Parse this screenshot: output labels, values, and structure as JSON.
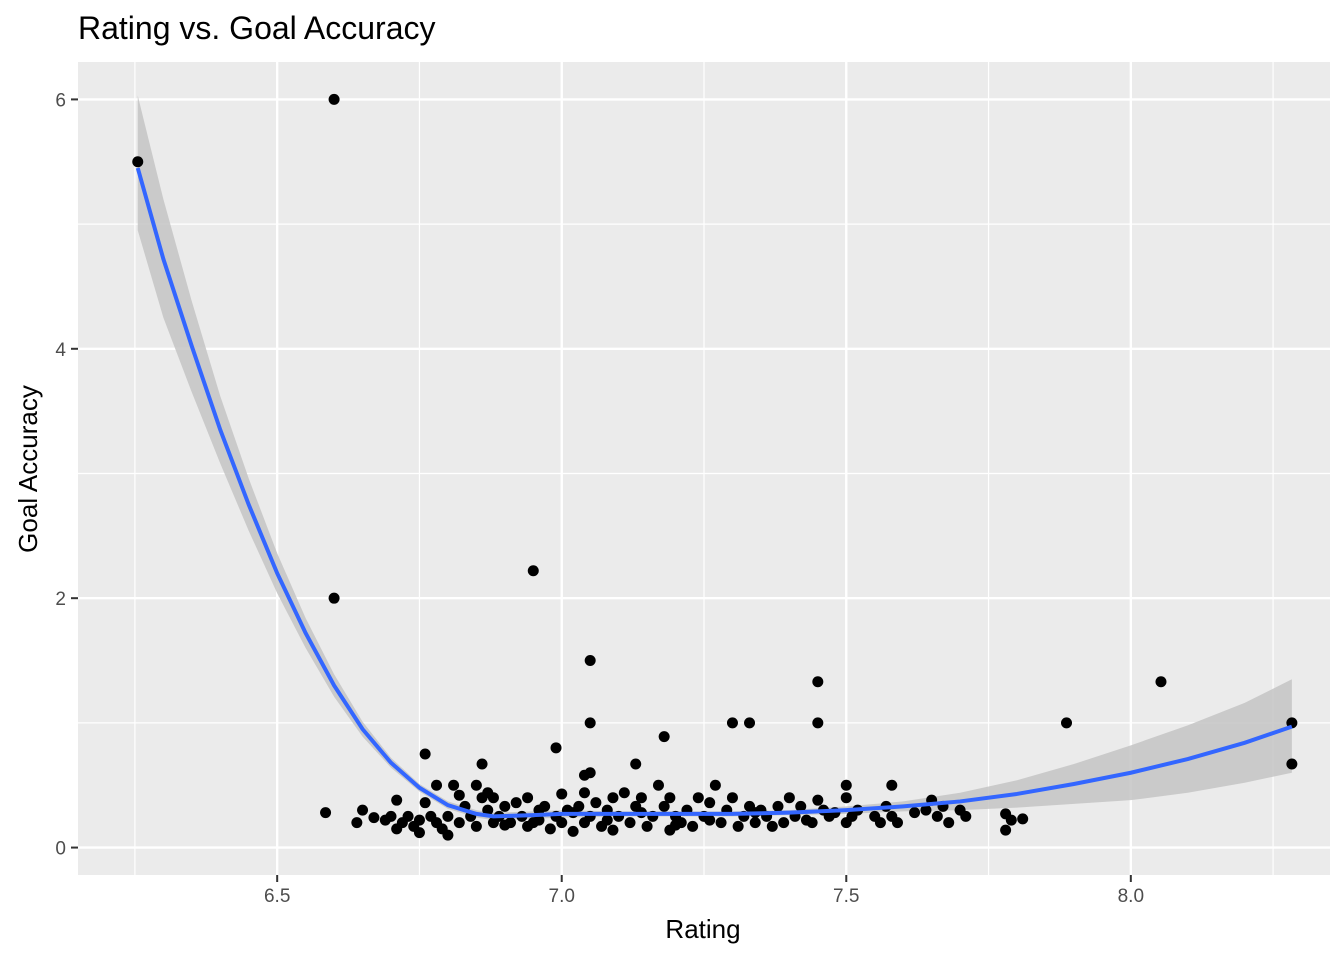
{
  "chart_data": {
    "type": "scatter",
    "title": "Rating vs. Goal Accuracy",
    "xlabel": "Rating",
    "ylabel": "Goal Accuracy",
    "xlim": [
      6.15,
      8.35
    ],
    "ylim": [
      -0.22,
      6.3
    ],
    "xticks": [
      6.5,
      7.0,
      7.5,
      8.0
    ],
    "xtick_labels": [
      "6.5",
      "7.0",
      "7.5",
      "8.0"
    ],
    "yticks": [
      0,
      2,
      4,
      6
    ],
    "ytick_labels": [
      "0",
      "2",
      "4",
      "6"
    ],
    "grid": true,
    "colors": {
      "panel": "#ebebeb",
      "grid": "#ffffff",
      "points": "#000000",
      "smooth": "#3366ff",
      "ribbon": "#c4c4c4"
    },
    "points": [
      [
        6.255,
        5.5
      ],
      [
        6.6,
        6.0
      ],
      [
        6.6,
        2.0
      ],
      [
        6.95,
        2.22
      ],
      [
        7.05,
        1.5
      ],
      [
        7.05,
        1.0
      ],
      [
        7.45,
        1.33
      ],
      [
        7.45,
        1.0
      ],
      [
        8.053,
        1.33
      ],
      [
        7.887,
        1.0
      ],
      [
        8.283,
        1.0
      ],
      [
        8.283,
        0.67
      ],
      [
        7.3,
        1.0
      ],
      [
        7.33,
        1.0
      ],
      [
        6.99,
        0.8
      ],
      [
        7.18,
        0.89
      ],
      [
        6.76,
        0.75
      ],
      [
        7.13,
        0.67
      ],
      [
        6.86,
        0.67
      ],
      [
        6.585,
        0.28
      ],
      [
        7.05,
        0.6
      ],
      [
        7.04,
        0.58
      ],
      [
        6.64,
        0.2
      ],
      [
        6.65,
        0.3
      ],
      [
        6.67,
        0.24
      ],
      [
        6.69,
        0.22
      ],
      [
        6.7,
        0.25
      ],
      [
        6.71,
        0.15
      ],
      [
        6.71,
        0.38
      ],
      [
        6.72,
        0.2
      ],
      [
        6.73,
        0.25
      ],
      [
        6.74,
        0.17
      ],
      [
        6.75,
        0.12
      ],
      [
        6.75,
        0.22
      ],
      [
        6.76,
        0.36
      ],
      [
        6.77,
        0.25
      ],
      [
        6.78,
        0.5
      ],
      [
        6.78,
        0.2
      ],
      [
        6.79,
        0.15
      ],
      [
        6.8,
        0.1
      ],
      [
        6.8,
        0.25
      ],
      [
        6.81,
        0.5
      ],
      [
        6.82,
        0.42
      ],
      [
        6.82,
        0.2
      ],
      [
        6.83,
        0.33
      ],
      [
        6.84,
        0.25
      ],
      [
        6.85,
        0.5
      ],
      [
        6.85,
        0.17
      ],
      [
        6.86,
        0.4
      ],
      [
        6.87,
        0.44
      ],
      [
        6.87,
        0.3
      ],
      [
        6.88,
        0.2
      ],
      [
        6.88,
        0.4
      ],
      [
        6.89,
        0.25
      ],
      [
        6.9,
        0.33
      ],
      [
        6.91,
        0.2
      ],
      [
        6.92,
        0.36
      ],
      [
        6.93,
        0.25
      ],
      [
        6.94,
        0.4
      ],
      [
        6.94,
        0.17
      ],
      [
        6.95,
        0.2
      ],
      [
        6.96,
        0.3
      ],
      [
        6.97,
        0.33
      ],
      [
        6.98,
        0.15
      ],
      [
        6.99,
        0.25
      ],
      [
        7.0,
        0.43
      ],
      [
        7.0,
        0.2
      ],
      [
        7.01,
        0.3
      ],
      [
        7.02,
        0.13
      ],
      [
        7.03,
        0.33
      ],
      [
        7.04,
        0.44
      ],
      [
        7.04,
        0.2
      ],
      [
        7.05,
        0.25
      ],
      [
        7.06,
        0.36
      ],
      [
        7.07,
        0.17
      ],
      [
        7.08,
        0.3
      ],
      [
        7.09,
        0.14
      ],
      [
        7.09,
        0.4
      ],
      [
        7.1,
        0.25
      ],
      [
        7.11,
        0.44
      ],
      [
        7.12,
        0.2
      ],
      [
        7.13,
        0.33
      ],
      [
        7.14,
        0.4
      ],
      [
        7.15,
        0.17
      ],
      [
        7.16,
        0.25
      ],
      [
        7.17,
        0.5
      ],
      [
        7.18,
        0.33
      ],
      [
        7.19,
        0.14
      ],
      [
        7.19,
        0.4
      ],
      [
        7.2,
        0.25
      ],
      [
        7.21,
        0.2
      ],
      [
        7.22,
        0.3
      ],
      [
        7.23,
        0.17
      ],
      [
        7.24,
        0.4
      ],
      [
        7.25,
        0.25
      ],
      [
        7.26,
        0.36
      ],
      [
        7.27,
        0.5
      ],
      [
        7.28,
        0.2
      ],
      [
        7.29,
        0.3
      ],
      [
        7.3,
        0.4
      ],
      [
        7.31,
        0.17
      ],
      [
        7.32,
        0.25
      ],
      [
        7.33,
        0.33
      ],
      [
        7.34,
        0.2
      ],
      [
        7.35,
        0.3
      ],
      [
        7.36,
        0.25
      ],
      [
        7.37,
        0.17
      ],
      [
        7.38,
        0.33
      ],
      [
        7.39,
        0.2
      ],
      [
        7.4,
        0.4
      ],
      [
        7.41,
        0.25
      ],
      [
        7.42,
        0.33
      ],
      [
        7.43,
        0.22
      ],
      [
        7.44,
        0.2
      ],
      [
        7.45,
        0.38
      ],
      [
        7.46,
        0.3
      ],
      [
        7.47,
        0.25
      ],
      [
        7.48,
        0.28
      ],
      [
        7.5,
        0.5
      ],
      [
        7.5,
        0.4
      ],
      [
        7.5,
        0.2
      ],
      [
        7.51,
        0.25
      ],
      [
        7.52,
        0.3
      ],
      [
        7.55,
        0.25
      ],
      [
        7.56,
        0.2
      ],
      [
        7.57,
        0.33
      ],
      [
        7.58,
        0.5
      ],
      [
        7.58,
        0.25
      ],
      [
        7.59,
        0.2
      ],
      [
        7.62,
        0.28
      ],
      [
        7.64,
        0.3
      ],
      [
        7.65,
        0.38
      ],
      [
        7.66,
        0.25
      ],
      [
        7.67,
        0.33
      ],
      [
        7.68,
        0.2
      ],
      [
        7.7,
        0.3
      ],
      [
        7.71,
        0.25
      ],
      [
        7.78,
        0.27
      ],
      [
        7.78,
        0.14
      ],
      [
        7.79,
        0.22
      ],
      [
        7.81,
        0.23
      ],
      [
        6.96,
        0.22
      ],
      [
        7.02,
        0.28
      ],
      [
        7.08,
        0.22
      ],
      [
        7.14,
        0.28
      ],
      [
        7.2,
        0.18
      ],
      [
        7.26,
        0.22
      ],
      [
        7.34,
        0.28
      ],
      [
        6.9,
        0.18
      ]
    ],
    "smooth": {
      "x": [
        6.255,
        6.3,
        6.35,
        6.4,
        6.45,
        6.5,
        6.55,
        6.6,
        6.65,
        6.7,
        6.75,
        6.8,
        6.85,
        6.88,
        6.95,
        7.0,
        7.1,
        7.2,
        7.3,
        7.4,
        7.5,
        7.6,
        7.7,
        7.8,
        7.9,
        8.0,
        8.1,
        8.2,
        8.283
      ],
      "y": [
        5.45,
        4.72,
        4.02,
        3.35,
        2.75,
        2.2,
        1.72,
        1.3,
        0.95,
        0.68,
        0.48,
        0.34,
        0.27,
        0.25,
        0.26,
        0.27,
        0.27,
        0.27,
        0.27,
        0.28,
        0.3,
        0.33,
        0.37,
        0.43,
        0.51,
        0.6,
        0.71,
        0.84,
        0.97
      ],
      "upper": [
        6.03,
        5.2,
        4.38,
        3.62,
        2.96,
        2.36,
        1.84,
        1.39,
        1.01,
        0.72,
        0.51,
        0.37,
        0.3,
        0.28,
        0.29,
        0.3,
        0.29,
        0.29,
        0.29,
        0.3,
        0.33,
        0.37,
        0.44,
        0.54,
        0.67,
        0.82,
        0.98,
        1.16,
        1.35
      ],
      "lower": [
        4.95,
        4.25,
        3.65,
        3.08,
        2.54,
        2.04,
        1.6,
        1.21,
        0.89,
        0.64,
        0.45,
        0.31,
        0.24,
        0.22,
        0.23,
        0.24,
        0.25,
        0.25,
        0.25,
        0.26,
        0.27,
        0.29,
        0.3,
        0.32,
        0.35,
        0.38,
        0.44,
        0.52,
        0.6
      ]
    }
  }
}
